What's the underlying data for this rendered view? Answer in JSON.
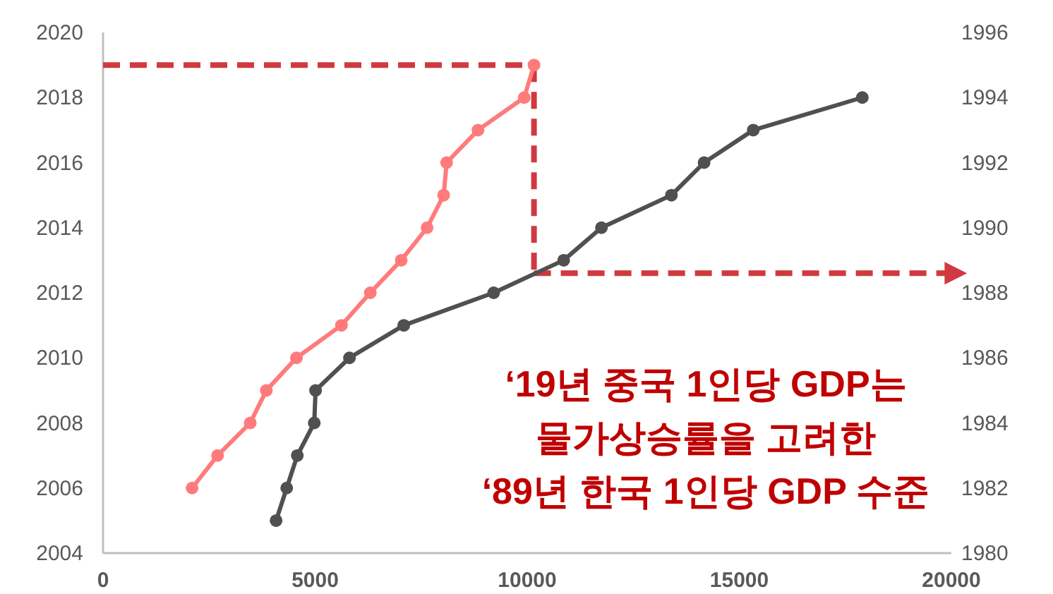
{
  "chart_data": {
    "type": "line",
    "xlim": [
      0,
      20000
    ],
    "xticks": [
      0,
      5000,
      10000,
      15000,
      20000
    ],
    "ylim": [
      2004,
      2020
    ],
    "yticks": [
      2004,
      2006,
      2008,
      2010,
      2012,
      2014,
      2016,
      2018,
      2020
    ],
    "y2lim": [
      1980,
      1996
    ],
    "y2ticks": [
      1980,
      1982,
      1984,
      1986,
      1988,
      1990,
      1992,
      1994,
      1996
    ],
    "grid": false,
    "marker": "circle",
    "series": [
      {
        "color": "#ff7b7b",
        "x": [
          2100,
          2700,
          3470,
          3850,
          4560,
          5620,
          6300,
          7030,
          7640,
          8030,
          8100,
          8840,
          9930,
          10160
        ],
        "values": [
          2006,
          2007,
          2008,
          2009,
          2010,
          2011,
          2012,
          2013,
          2014,
          2015,
          2016,
          2017,
          2018,
          2019
        ]
      },
      {
        "color": "#505050",
        "axis": "y2",
        "x": [
          4080,
          4330,
          4580,
          4980,
          5010,
          5810,
          7090,
          9210,
          10860,
          11750,
          13400,
          14170,
          15330,
          17900
        ],
        "values": [
          1981,
          1982,
          1983,
          1984,
          1985,
          1986,
          1987,
          1988,
          1989,
          1990,
          1991,
          1992,
          1993,
          1994
        ]
      }
    ],
    "ref_lines": [
      {
        "axis": "y",
        "value": 2019,
        "color": "#d0393f",
        "line_style": "dashed"
      },
      {
        "axis": "x",
        "value": 10160,
        "color": "#d0393f",
        "line_style": "dashed"
      },
      {
        "axis": "y2",
        "value": 1988.6,
        "color": "#d0393f",
        "line_style": "dashed"
      }
    ],
    "annotations": [
      "‘19년 중국 1인당 GDP는\n물가상승률을 고려한\n‘89년 한국 1인당 GDP 수준"
    ]
  }
}
